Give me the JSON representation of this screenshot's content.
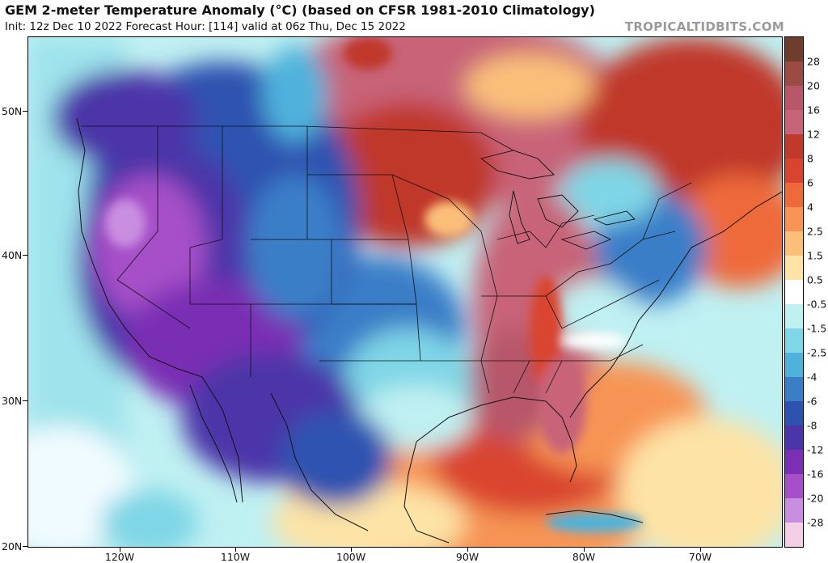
{
  "header": {
    "title": "GEM 2-meter Temperature Anomaly (°C) (based on CFSR 1981-2010 Climatology)",
    "subtitle": "Init: 12z Dec 10 2022   Forecast Hour: [114]   valid at 06z Thu, Dec 15 2022",
    "brand": "TROPICALTIDBITS.COM"
  },
  "map": {
    "lat_labels": [
      "50N",
      "40N",
      "30N",
      "20N"
    ],
    "lon_labels": [
      "120W",
      "110W",
      "100W",
      "90W",
      "80W",
      "70W"
    ]
  },
  "colorbar": {
    "labels": [
      "28",
      "20",
      "16",
      "12",
      "8",
      "6",
      "4",
      "2.5",
      "1.5",
      "0.5",
      "-0.5",
      "-1.5",
      "-2.5",
      "-4",
      "-6",
      "-8",
      "-12",
      "-16",
      "-20",
      "-28"
    ],
    "colors": [
      "#6e3d2e",
      "#9b4a44",
      "#b8566a",
      "#c86478",
      "#c0392b",
      "#d9442e",
      "#ef6a3a",
      "#f79455",
      "#fbbf7a",
      "#fde3a6",
      "#ffffff",
      "#bff0f2",
      "#7fd6e6",
      "#4fb2dc",
      "#3a7ec8",
      "#2d52b0",
      "#4b35a8",
      "#7a2fb4",
      "#a64fc8",
      "#c98ee0",
      "#f4cfe6"
    ]
  }
}
